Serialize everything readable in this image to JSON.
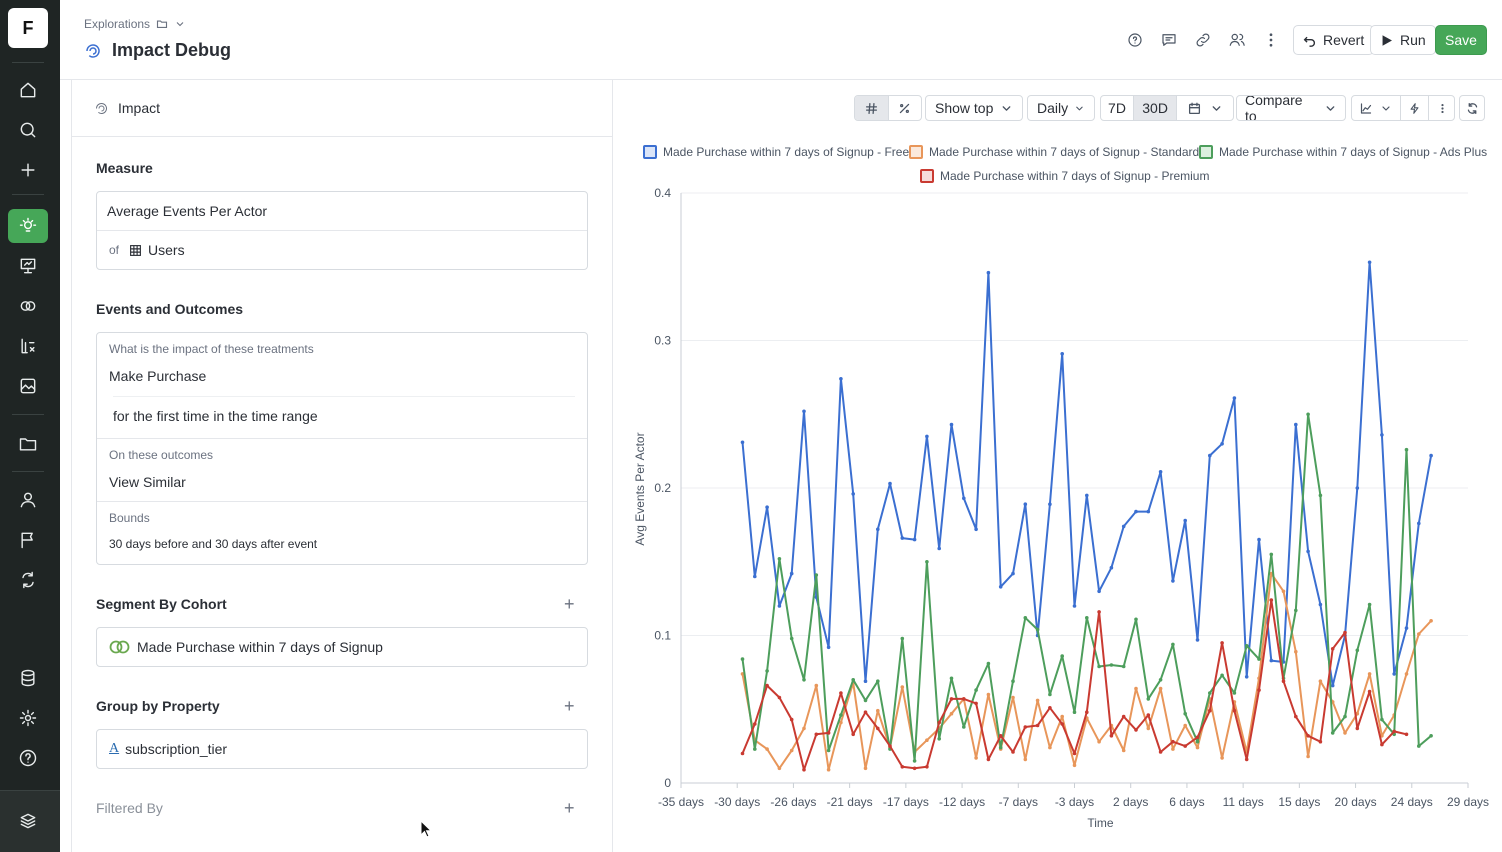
{
  "app": {
    "logo_letter": "F",
    "breadcrumb": "Explorations",
    "title": "Impact Debug",
    "brand_color": "#46a758"
  },
  "rail": {
    "items": [
      {
        "name": "home-icon"
      },
      {
        "name": "search-icon"
      },
      {
        "name": "plus-icon"
      },
      {
        "name": "lightbulb-icon",
        "active": true
      },
      {
        "name": "presentation-icon"
      },
      {
        "name": "cohorts-icon"
      },
      {
        "name": "formula-icon"
      },
      {
        "name": "image-icon"
      },
      {
        "name": "folder-icon"
      },
      {
        "name": "user-icon"
      },
      {
        "name": "flag-icon"
      },
      {
        "name": "experiment-icon"
      },
      {
        "name": "database-icon"
      },
      {
        "name": "gear-icon"
      },
      {
        "name": "help-icon"
      },
      {
        "name": "stack-icon"
      }
    ]
  },
  "header": {
    "revert_label": "Revert",
    "run_label": "Run",
    "save_label": "Save"
  },
  "panel": {
    "head_label": "Impact",
    "measure": {
      "title": "Measure",
      "metric": "Average Events Per Actor",
      "of_label": "of",
      "entity": "Users"
    },
    "events": {
      "title": "Events and Outcomes",
      "treatments_label": "What is the impact of these treatments",
      "treatment_event": "Make Purchase",
      "treatment_filter": "for the first time in the time range",
      "outcomes_label": "On these outcomes",
      "outcome_event": "View Similar",
      "bounds_label": "Bounds",
      "bounds_value": "30 days before and 30 days after event"
    },
    "segment": {
      "title": "Segment By Cohort",
      "cohort": "Made Purchase within 7 days of Signup"
    },
    "group": {
      "title": "Group by Property",
      "property": "subscription_tier"
    },
    "filter": {
      "title": "Filtered By"
    }
  },
  "toolbar": {
    "show_top_label": "Show top",
    "granularity_label": "Daily",
    "range_7d": "7D",
    "range_30d": "30D",
    "compare_label": "Compare to"
  },
  "chart_data": {
    "type": "line",
    "xlabel": "Time",
    "ylabel": "Avg Events Per Actor",
    "ylim": [
      0,
      0.4
    ],
    "yticks": [
      0,
      0.1,
      0.2,
      0.3,
      0.4
    ],
    "xlim": [
      -35,
      29
    ],
    "xtick_labels": [
      "-35 days",
      "-30 days",
      "-26 days",
      "-21 days",
      "-17 days",
      "-12 days",
      "-7 days",
      "-3 days",
      "2 days",
      "6 days",
      "11 days",
      "15 days",
      "20 days",
      "24 days",
      "29 days"
    ],
    "grid": true,
    "legend_position": "top",
    "x": [
      -30,
      -29,
      -28,
      -27,
      -26,
      -25,
      -24,
      -23,
      -22,
      -21,
      -20,
      -19,
      -18,
      -17,
      -16,
      -15,
      -14,
      -13,
      -12,
      -11,
      -10,
      -9,
      -8,
      -7,
      -6,
      -5,
      -4,
      -3,
      -2,
      -1,
      0,
      1,
      2,
      3,
      4,
      5,
      6,
      7,
      8,
      9,
      10,
      11,
      12,
      13,
      14,
      15,
      16,
      17,
      18,
      19,
      20,
      21,
      22,
      23,
      24,
      25,
      26,
      27
    ],
    "series": [
      {
        "name": "Made Purchase within 7 days of Signup - Free",
        "color": "#3b6fd1",
        "values": [
          0.231,
          0.14,
          0.187,
          0.12,
          0.142,
          0.252,
          0.126,
          0.092,
          0.274,
          0.196,
          0.069,
          0.172,
          0.203,
          0.166,
          0.165,
          0.235,
          0.159,
          0.243,
          0.193,
          0.172,
          0.346,
          0.133,
          0.142,
          0.189,
          0.1,
          0.189,
          0.291,
          0.12,
          0.195,
          0.13,
          0.146,
          0.174,
          0.184,
          0.184,
          0.211,
          0.137,
          0.178,
          0.097,
          0.222,
          0.23,
          0.261,
          0.072,
          0.165,
          0.083,
          0.082,
          0.243,
          0.157,
          0.121,
          0.066,
          0.1,
          0.2,
          0.353,
          0.236,
          0.074,
          0.105,
          0.176,
          0.222,
          null
        ]
      },
      {
        "name": "Made Purchase within 7 days of Signup - Standard",
        "color": "#e8965a",
        "values": [
          0.074,
          0.029,
          0.023,
          0.01,
          0.022,
          0.037,
          0.066,
          0.009,
          0.041,
          0.068,
          0.01,
          0.049,
          0.024,
          0.065,
          0.021,
          0.029,
          0.037,
          0.047,
          0.057,
          0.017,
          0.06,
          0.023,
          0.058,
          0.016,
          0.056,
          0.024,
          0.045,
          0.012,
          0.044,
          0.028,
          0.039,
          0.022,
          0.064,
          0.037,
          0.064,
          0.023,
          0.039,
          0.024,
          0.057,
          0.017,
          0.055,
          0.021,
          0.071,
          0.142,
          0.13,
          0.089,
          0.018,
          0.069,
          0.055,
          0.034,
          0.047,
          0.074,
          0.032,
          0.046,
          0.074,
          0.101,
          0.11,
          null
        ]
      },
      {
        "name": "Made Purchase within 7 days of Signup - Ads Plus",
        "color": "#4d9e5c",
        "values": [
          0.084,
          0.023,
          0.076,
          0.152,
          0.098,
          0.07,
          0.141,
          0.022,
          0.046,
          0.07,
          0.056,
          0.069,
          0.023,
          0.098,
          0.015,
          0.15,
          0.03,
          0.071,
          0.038,
          0.063,
          0.081,
          0.024,
          0.069,
          0.112,
          0.104,
          0.06,
          0.086,
          0.048,
          0.112,
          0.079,
          0.08,
          0.079,
          0.111,
          0.057,
          0.07,
          0.094,
          0.047,
          0.028,
          0.061,
          0.073,
          0.061,
          0.093,
          0.084,
          0.155,
          0.071,
          0.117,
          0.25,
          0.195,
          0.034,
          0.045,
          0.09,
          0.121,
          0.043,
          0.033,
          0.226,
          0.025,
          0.032,
          null
        ]
      },
      {
        "name": "Made Purchase within 7 days of Signup - Premium",
        "color": "#c93a31",
        "values": [
          0.02,
          0.04,
          0.066,
          0.058,
          0.043,
          0.009,
          0.033,
          0.034,
          0.061,
          0.033,
          0.048,
          0.037,
          0.025,
          0.011,
          0.01,
          0.011,
          0.041,
          0.057,
          0.057,
          0.054,
          0.016,
          0.032,
          0.021,
          0.038,
          0.039,
          0.051,
          0.04,
          0.02,
          0.048,
          0.116,
          0.032,
          0.045,
          0.036,
          0.046,
          0.021,
          0.028,
          0.025,
          0.031,
          0.049,
          0.095,
          0.049,
          0.016,
          0.063,
          0.124,
          0.069,
          0.045,
          0.032,
          0.028,
          0.091,
          0.102,
          0.037,
          0.062,
          0.026,
          0.035,
          0.033,
          null,
          null,
          null
        ]
      }
    ]
  }
}
